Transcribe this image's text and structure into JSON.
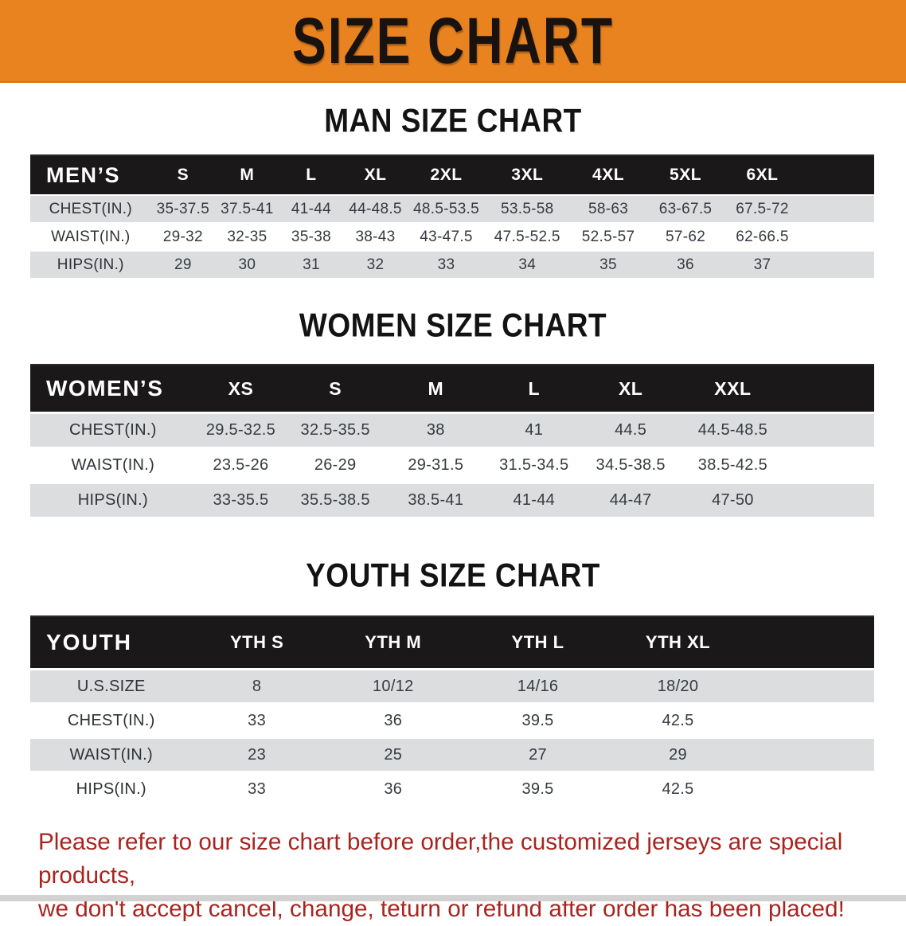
{
  "banner": {
    "title": "SIZE CHART",
    "bg_color": "#E8831F"
  },
  "sections": [
    {
      "title": "MAN SIZE CHART",
      "table": {
        "corner_label": "MEN’S",
        "size_headers": [
          "S",
          "M",
          "L",
          "XL",
          "2XL",
          "3XL",
          "4XL",
          "5XL",
          "6XL"
        ],
        "rows": [
          {
            "label": "CHEST(IN.)",
            "values": [
              "35-37.5",
              "37.5-41",
              "41-44",
              "44-48.5",
              "48.5-53.5",
              "53.5-58",
              "58-63",
              "63-67.5",
              "67.5-72"
            ]
          },
          {
            "label": "WAIST(IN.)",
            "values": [
              "29-32",
              "32-35",
              "35-38",
              "38-43",
              "43-47.5",
              "47.5-52.5",
              "52.5-57",
              "57-62",
              "62-66.5"
            ]
          },
          {
            "label": "HIPS(IN.)",
            "values": [
              "29",
              "30",
              "31",
              "32",
              "33",
              "34",
              "35",
              "36",
              "37"
            ]
          }
        ]
      }
    },
    {
      "title": "WOMEN SIZE CHART",
      "table": {
        "corner_label": "WOMEN’S",
        "size_headers": [
          "XS",
          "S",
          "M",
          "L",
          "XL",
          "XXL"
        ],
        "rows": [
          {
            "label": "CHEST(IN.)",
            "values": [
              "29.5-32.5",
              "32.5-35.5",
              "38",
              "41",
              "44.5",
              "44.5-48.5"
            ]
          },
          {
            "label": "WAIST(IN.)",
            "values": [
              "23.5-26",
              "26-29",
              "29-31.5",
              "31.5-34.5",
              "34.5-38.5",
              "38.5-42.5"
            ]
          },
          {
            "label": "HIPS(IN.)",
            "values": [
              "33-35.5",
              "35.5-38.5",
              "38.5-41",
              "41-44",
              "44-47",
              "47-50"
            ]
          }
        ]
      }
    },
    {
      "title": "YOUTH SIZE CHART",
      "table": {
        "corner_label": "YOUTH",
        "size_headers": [
          "YTH S",
          "YTH M",
          "YTH L",
          "YTH XL"
        ],
        "rows": [
          {
            "label": "U.S.SIZE",
            "values": [
              "8",
              "10/12",
              "14/16",
              "18/20"
            ]
          },
          {
            "label": "CHEST(IN.)",
            "values": [
              "33",
              "36",
              "39.5",
              "42.5"
            ]
          },
          {
            "label": "WAIST(IN.)",
            "values": [
              "23",
              "25",
              "27",
              "29"
            ]
          },
          {
            "label": "HIPS(IN.)",
            "values": [
              "33",
              "36",
              "39.5",
              "42.5"
            ]
          }
        ]
      }
    }
  ],
  "disclaimer": {
    "lines": [
      "Please refer to our size chart before order,the customized jerseys are special products,",
      "we don't accept cancel, change, teturn or refund after order has been placed!"
    ],
    "color": "#A8251F"
  },
  "colors": {
    "banner_bg": "#E8831F",
    "table_header_bg": "#1B1819",
    "row_stripe_bg": "#DCDDDE",
    "body_text": "#363A40"
  }
}
